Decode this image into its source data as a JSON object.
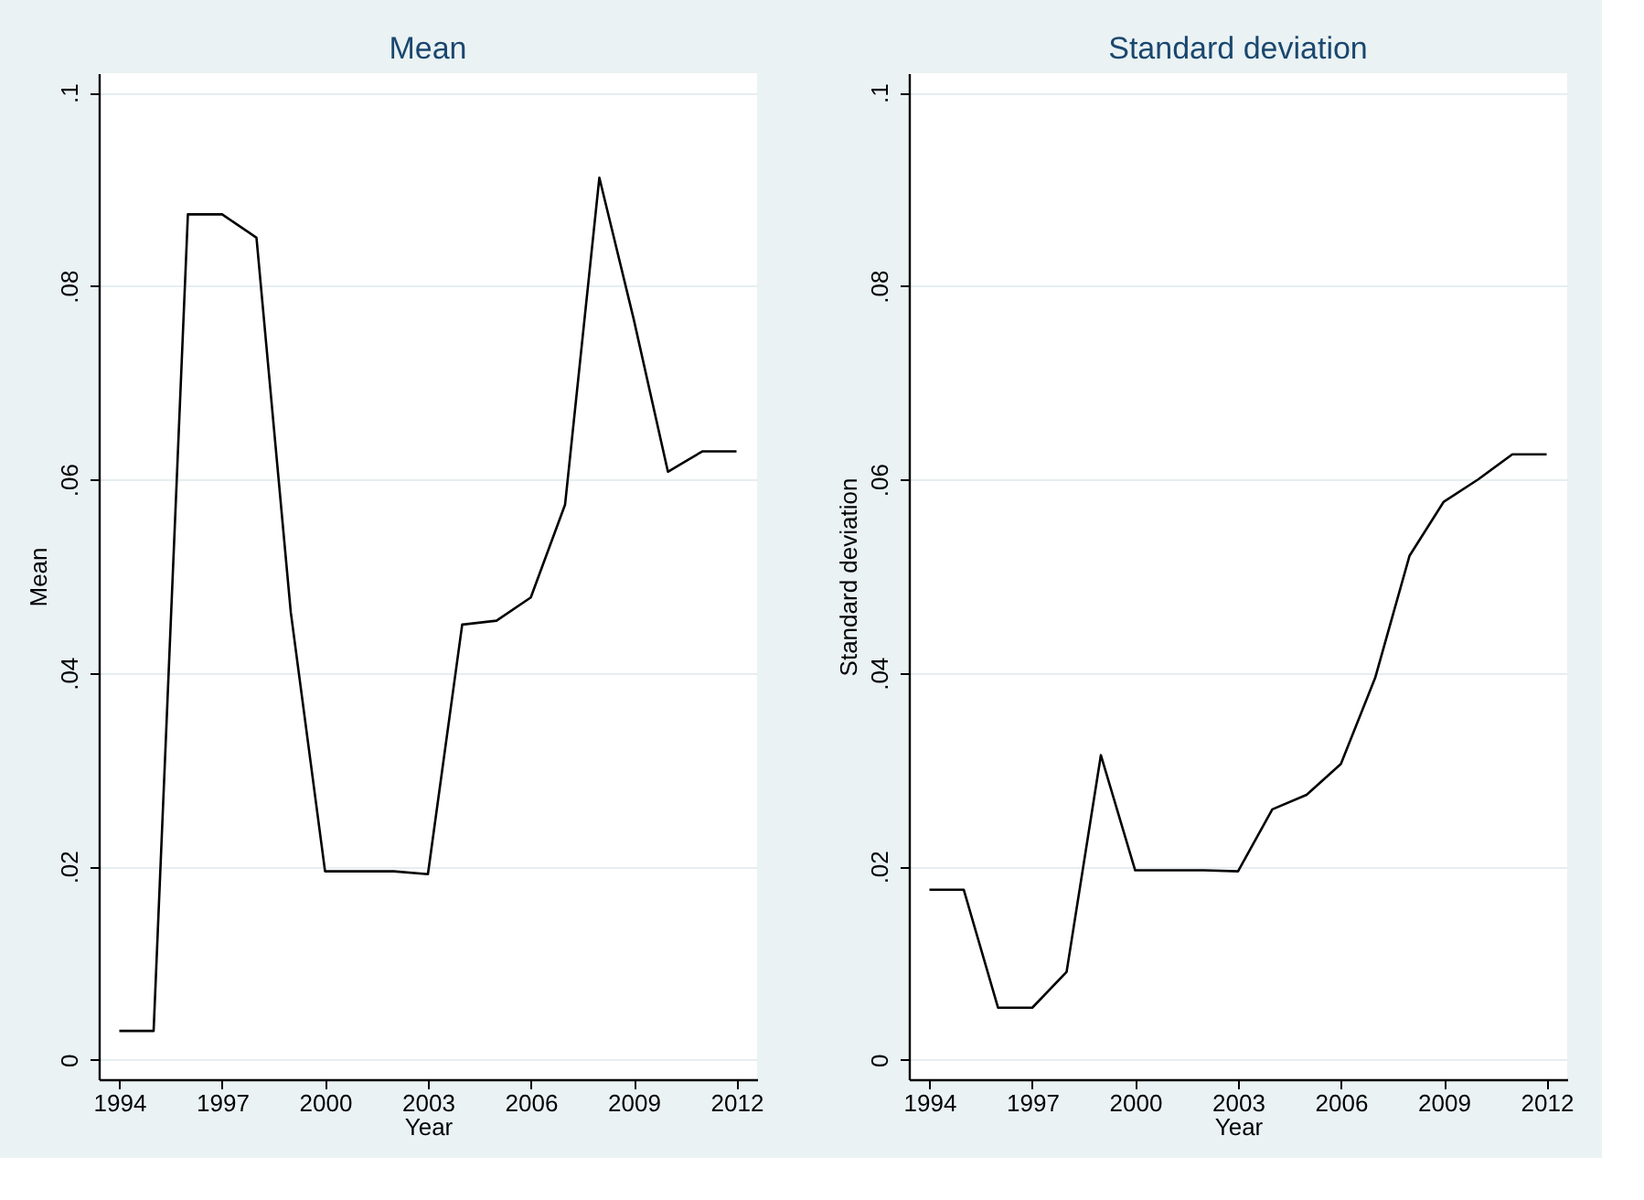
{
  "chart_data": [
    {
      "type": "line",
      "title": "Mean",
      "xlabel": "Year",
      "ylabel": "Mean",
      "x": [
        1994,
        1995,
        1996,
        1997,
        1998,
        1999,
        2000,
        2001,
        2002,
        2003,
        2004,
        2005,
        2006,
        2007,
        2008,
        2009,
        2010,
        2011,
        2012
      ],
      "series": [
        {
          "color": "#000000",
          "values": [
            0.003,
            0.003,
            0.0874,
            0.0874,
            0.085,
            0.0463,
            0.0195,
            0.0195,
            0.0195,
            0.0192,
            0.045,
            0.0454,
            0.0478,
            0.0574,
            0.0912,
            0.0766,
            0.0608,
            0.0629,
            0.0629
          ]
        }
      ],
      "xlim": [
        1993.4,
        2012.6
      ],
      "xticks": [
        1994,
        1997,
        2000,
        2003,
        2006,
        2009,
        2012
      ],
      "ylim": [
        -0.002,
        0.102
      ],
      "yticks": [
        0,
        {
          "value": 0.02,
          "label": ".02"
        },
        {
          "value": 0.04,
          "label": ".04"
        },
        {
          "value": 0.06,
          "label": ".06"
        },
        {
          "value": 0.08,
          "label": ".08"
        },
        {
          "value": 0.1,
          "label": ".1"
        }
      ],
      "grid": "y",
      "line_style": "solid",
      "marker": "none"
    },
    {
      "type": "line",
      "title": "Standard deviation",
      "xlabel": "Year",
      "ylabel": "Standard deviation",
      "x": [
        1994,
        1995,
        1996,
        1997,
        1998,
        1999,
        2000,
        2001,
        2002,
        2003,
        2004,
        2005,
        2006,
        2007,
        2008,
        2009,
        2010,
        2011,
        2012
      ],
      "series": [
        {
          "color": "#000000",
          "values": [
            0.0176,
            0.0176,
            0.0054,
            0.0054,
            0.0091,
            0.0315,
            0.0196,
            0.0196,
            0.0196,
            0.0195,
            0.0259,
            0.0274,
            0.0306,
            0.0395,
            0.0521,
            0.0577,
            0.06,
            0.0626,
            0.0626
          ]
        }
      ],
      "xlim": [
        1993.4,
        2012.6
      ],
      "xticks": [
        1994,
        1997,
        2000,
        2003,
        2006,
        2009,
        2012
      ],
      "ylim": [
        -0.002,
        0.102
      ],
      "yticks": [
        0,
        {
          "value": 0.02,
          "label": ".02"
        },
        {
          "value": 0.04,
          "label": ".04"
        },
        {
          "value": 0.06,
          "label": ".06"
        },
        {
          "value": 0.08,
          "label": ".08"
        },
        {
          "value": 0.1,
          "label": ".1"
        }
      ],
      "grid": "y",
      "line_style": "solid",
      "marker": "none"
    }
  ]
}
